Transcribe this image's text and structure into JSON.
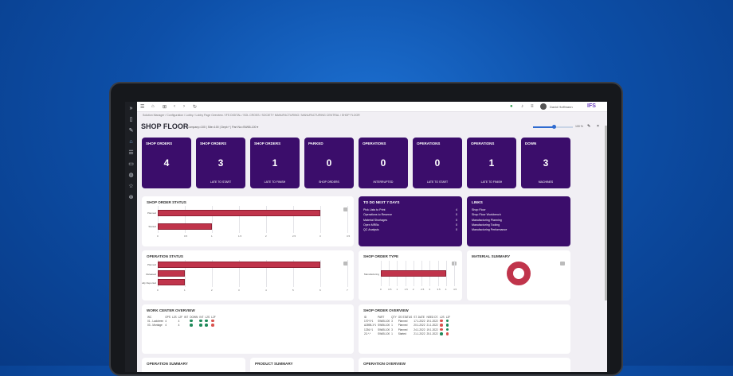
{
  "topbar": {
    "user": "David Hoffmann",
    "logo": "IFS"
  },
  "breadcrumb": "Solution Manager / Configuration / Lobby / Lobby Page Overview / IFS DIGITAL / SOL CROSS / SOCIETY MANUFACTURING / MANUFACTURING CENTRAL / SHOP FLOOR",
  "page": {
    "title": "SHOP FLOOR",
    "context": "Company=100 | Site=100 | Dept=* | Part No=SW65-100 ▾",
    "zoom": "100 %",
    "zoom_level": 0.5
  },
  "sidebar": [
    "Home",
    "Tasks",
    "Work",
    "Work Q",
    "Lobby",
    "Apps"
  ],
  "kpis": [
    {
      "title": "SHOP ORDERS",
      "value": "4",
      "sub": ""
    },
    {
      "title": "SHOP ORDERS",
      "value": "3",
      "sub": "LATE TO START"
    },
    {
      "title": "SHOP ORDERS",
      "value": "1",
      "sub": "LATE TO FINISH"
    },
    {
      "title": "PARKED",
      "value": "0",
      "sub": "SHOP ORDERS"
    },
    {
      "title": "OPERATIONS",
      "value": "0",
      "sub": "INTERRUPTED"
    },
    {
      "title": "OPERATIONS",
      "value": "0",
      "sub": "LATE TO START"
    },
    {
      "title": "OPERATIONS",
      "value": "1",
      "sub": "LATE TO FINISH"
    },
    {
      "title": "DOWN",
      "value": "3",
      "sub": "MACHINES"
    }
  ],
  "todo": {
    "title": "TO DO NEXT 7 DAYS",
    "items": [
      {
        "label": "Pick Lists to Print",
        "value": "4"
      },
      {
        "label": "Operations to Reserve",
        "value": "0"
      },
      {
        "label": "Material Shortages",
        "value": "0"
      },
      {
        "label": "Open MRBs",
        "value": "0"
      },
      {
        "label": "QC Analysis",
        "value": "0"
      }
    ]
  },
  "links": {
    "title": "LINKS",
    "items": [
      "Shop Floor",
      "Shop Floor Workbench",
      "Manufacturing Planning",
      "Manufacturing Tooling",
      "Manufacturing Performance"
    ]
  },
  "chart_data": [
    {
      "type": "bar",
      "title": "SHOP ORDER STATUS",
      "categories": [
        "Planned",
        "Started"
      ],
      "values": [
        3,
        1
      ],
      "xlim": [
        0,
        3.5
      ],
      "ticks": [
        "0",
        "0.5",
        "1",
        "1.5",
        "2",
        "2.5",
        "3",
        "3.5"
      ]
    },
    {
      "type": "bar",
      "title": "OPERATION STATUS",
      "categories": [
        "Planned",
        "Released",
        "Partially Reported"
      ],
      "values": [
        6,
        1,
        1
      ],
      "xlim": [
        0,
        7
      ],
      "ticks": [
        "0",
        "1",
        "2",
        "3",
        "4",
        "5",
        "6",
        "7"
      ]
    },
    {
      "type": "bar",
      "title": "SHOP ORDER TYPE",
      "categories": [
        "Manufacturing"
      ],
      "values": [
        4
      ],
      "xlim": [
        0,
        4.5
      ],
      "ticks": [
        "0",
        "0.5",
        "1",
        "1.5",
        "2",
        "2.5",
        "3",
        "3.5",
        "4",
        "4.5"
      ]
    },
    {
      "type": "pie",
      "title": "MATERIAL SUMMARY",
      "values": [
        1
      ]
    }
  ],
  "work_center": {
    "title": "WORK CENTER OVERVIEW",
    "headers": [
      "WC",
      "OPS",
      "L2S",
      "L2F",
      "INT",
      "DOWN",
      "INT",
      "L2S",
      "L2F"
    ],
    "rows": [
      [
        "01 - Lackieren",
        "4",
        "",
        "4",
        "",
        "green",
        "green",
        "green",
        "red"
      ],
      [
        "03 - Montage",
        "4",
        "",
        "4",
        "",
        "green",
        "green",
        "green",
        "red"
      ]
    ]
  },
  "shop_order_overview": {
    "title": "SHOP ORDER OVERVIEW",
    "headers": [
      "ID",
      "PART",
      "QTY",
      "OS STATUS",
      "ST. DATE",
      "NEED DT.",
      "L2S",
      "L2F"
    ],
    "rows": [
      [
        "170*1*1",
        "SW65-100",
        "3",
        "Planned",
        "17.1.2022",
        "19.1.2022",
        "red",
        "green"
      ],
      [
        "A2898-1*1",
        "SW56-100",
        "1",
        "Planned",
        "20.1.2022",
        "21.1.2022",
        "red",
        "green"
      ],
      [
        "1236-*1",
        "SW65-100",
        "3",
        "Planned",
        "24.1.2022",
        "19.1.2022",
        "red",
        "green"
      ],
      [
        "23-*-*",
        "SW65-100",
        "1",
        "Started",
        "21.1.2022",
        "25.1.2022",
        "green",
        "red"
      ]
    ]
  },
  "bottom": {
    "operation_summary": "OPERATION SUMMARY",
    "product_summary": "PRODUCT SUMMARY",
    "operation_overview": "OPERATION OVERVIEW"
  },
  "colors": {
    "tile": "#3b0d6b",
    "bar": "#c0344b",
    "green": "#1f8a5a",
    "red": "#d9534f"
  }
}
